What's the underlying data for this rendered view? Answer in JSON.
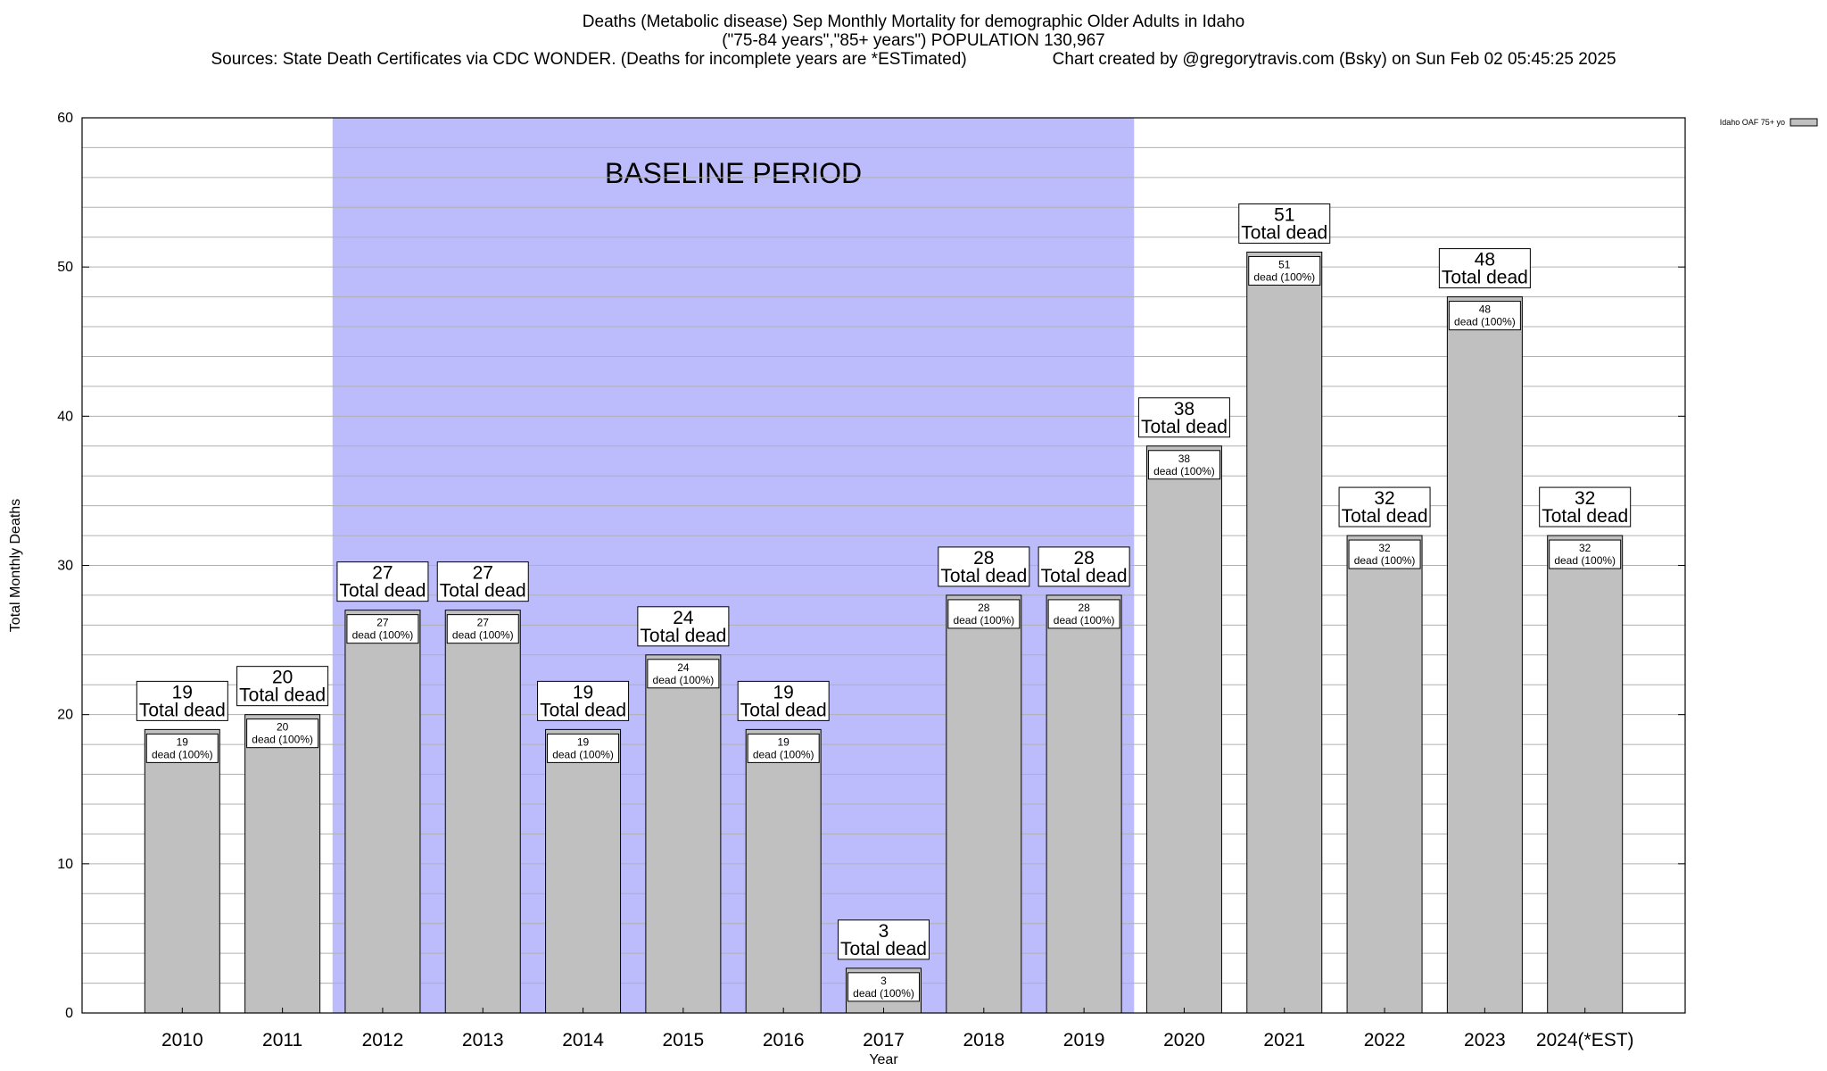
{
  "header": {
    "title": "Deaths (Metabolic disease) Sep Monthly Mortality for demographic Older Adults in Idaho",
    "subtitle": "(\"75-84 years\",\"85+ years\") POPULATION 130,967",
    "sources": "Sources: State Death Certificates via CDC WONDER. (Deaths for incomplete years are *ESTimated)",
    "credit": "Chart created by @gregorytravis.com (Bsky) on Sun Feb 02 05:45:25 2025"
  },
  "colors": {
    "bar": "#c0c0c0",
    "baseline_band": "#bcbcfc",
    "grid": "#b0b0b0"
  },
  "chart_data": {
    "type": "bar",
    "categories": [
      "2010",
      "2011",
      "2012",
      "2013",
      "2014",
      "2015",
      "2016",
      "2017",
      "2018",
      "2019",
      "2020",
      "2021",
      "2022",
      "2023",
      "2024(*EST)"
    ],
    "series": [
      {
        "name": "Idaho OAF 75+ yo",
        "values": [
          19,
          20,
          27,
          27,
          19,
          24,
          19,
          3,
          28,
          28,
          38,
          51,
          32,
          48,
          32
        ]
      }
    ],
    "xlabel": "Year",
    "ylabel": "Total Monthly Deaths",
    "ylim": [
      0,
      60
    ],
    "yticks": [
      0,
      10,
      20,
      30,
      40,
      50,
      60
    ],
    "minor_grid_step": 2,
    "grid": true,
    "legend_position": "top-right",
    "baseline_period": {
      "label": "BASELINE PERIOD",
      "start": "2012",
      "end": "2019"
    },
    "top_label_text": "Total dead",
    "inner_label_text": "dead (100%)"
  }
}
